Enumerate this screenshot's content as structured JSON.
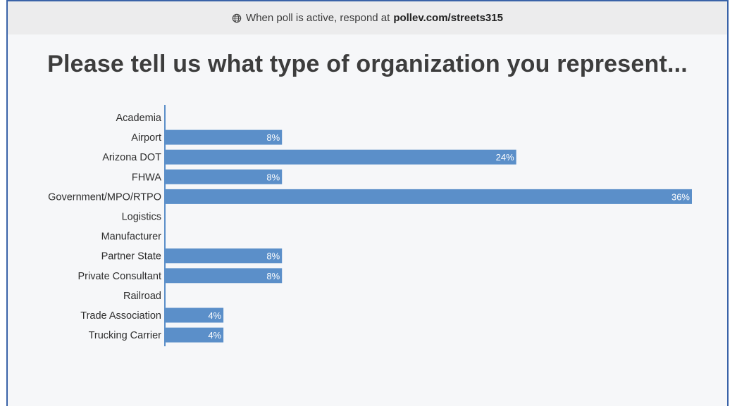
{
  "header": {
    "prefix": "When poll is active, respond at",
    "url": "pollev.com/streets315",
    "icon": "globe-icon"
  },
  "question": {
    "title": "Please tell us what type of organization you represent..."
  },
  "colors": {
    "bar": "#5b8fc9",
    "axis": "#5b8fc9",
    "frame_border": "#3a63a8"
  },
  "chart_data": {
    "type": "bar",
    "orientation": "horizontal",
    "categories": [
      "Academia",
      "Airport",
      "Arizona DOT",
      "FHWA",
      "Government/MPO/RTPO",
      "Logistics",
      "Manufacturer",
      "Partner State",
      "Private Consultant",
      "Railroad",
      "Trade Association",
      "Trucking Carrier"
    ],
    "values": [
      0,
      8,
      24,
      8,
      36,
      0,
      0,
      8,
      8,
      0,
      4,
      4
    ],
    "value_labels": [
      "",
      "8%",
      "24%",
      "8%",
      "36%",
      "",
      "",
      "8%",
      "8%",
      "",
      "4%",
      "4%"
    ],
    "unit": "%",
    "xlim": [
      0,
      36
    ],
    "title": "Please tell us what type of organization you represent...",
    "xlabel": "",
    "ylabel": "",
    "grid": false,
    "legend": "none"
  }
}
